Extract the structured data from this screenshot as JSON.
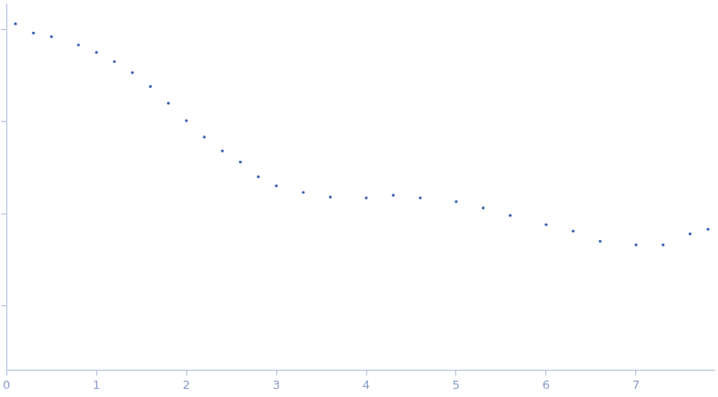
{
  "chart_data": {
    "type": "scatter",
    "x": [
      0.1,
      0.3,
      0.5,
      0.8,
      1.0,
      1.2,
      1.4,
      1.6,
      1.8,
      2.0,
      2.2,
      2.4,
      2.6,
      2.8,
      3.0,
      3.3,
      3.6,
      4.0,
      4.3,
      4.6,
      5.0,
      5.3,
      5.6,
      6.0,
      6.3,
      6.6,
      7.0,
      7.3,
      7.6,
      7.8
    ],
    "values": [
      1.148,
      0.912,
      0.832,
      0.676,
      0.562,
      0.447,
      0.339,
      0.24,
      0.158,
      0.102,
      0.0676,
      0.0479,
      0.0363,
      0.0251,
      0.02,
      0.017,
      0.0151,
      0.0148,
      0.0158,
      0.0148,
      0.0135,
      0.0115,
      0.00955,
      0.00759,
      0.00646,
      0.00501,
      0.00457,
      0.00457,
      0.00603,
      0.00676
    ],
    "color": "#3d62b3",
    "marker": "circle",
    "log": "y",
    "xlim": [
      0,
      7.87
    ],
    "xticks": [
      0,
      1,
      2,
      3,
      4,
      5,
      6,
      7
    ],
    "ylim": [
      0.0002,
      1.9
    ],
    "yticks": [
      0.001,
      0.01,
      0.1,
      1
    ],
    "grid": false,
    "tick_labels": "x"
  }
}
